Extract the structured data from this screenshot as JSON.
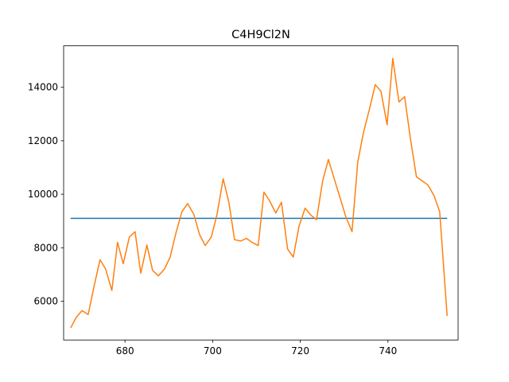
{
  "chart_data": {
    "type": "line",
    "title": "C4H9Cl2N",
    "xlabel": "",
    "ylabel": "",
    "xlim": [
      666.0,
      756.0
    ],
    "ylim": [
      4550,
      15550
    ],
    "xticks": [
      680,
      700,
      720,
      740
    ],
    "yticks": [
      6000,
      8000,
      10000,
      12000,
      14000
    ],
    "grid": false,
    "colors": {
      "series_0": "#1f77b4",
      "series_1": "#ff7f0e"
    },
    "series": [
      {
        "x": [
          667.6,
          753.5
        ],
        "y": [
          9100,
          9100
        ]
      },
      {
        "x": [
          667.6,
          668.9,
          670.2,
          671.6,
          673.0,
          674.3,
          675.6,
          677.0,
          678.3,
          679.6,
          681.0,
          682.3,
          683.6,
          685.0,
          686.3,
          687.6,
          689.0,
          690.3,
          691.7,
          693.0,
          694.3,
          695.7,
          697.0,
          698.3,
          699.7,
          701.0,
          702.4,
          703.7,
          705.0,
          706.4,
          707.7,
          709.0,
          710.4,
          711.7,
          713.0,
          714.4,
          715.7,
          717.1,
          718.4,
          719.7,
          721.1,
          722.4,
          723.7,
          725.1,
          726.4,
          727.7,
          729.1,
          730.4,
          731.8,
          733.1,
          734.4,
          735.8,
          737.1,
          738.4,
          739.8,
          741.1,
          742.5,
          743.8,
          745.1,
          746.5,
          747.8,
          749.1,
          750.5,
          751.8,
          753.5
        ],
        "y": [
          5000,
          5400,
          5650,
          5500,
          6600,
          7550,
          7200,
          6400,
          8200,
          7400,
          8400,
          8600,
          7050,
          8100,
          7150,
          6950,
          7200,
          7650,
          8600,
          9350,
          9650,
          9250,
          8500,
          8080,
          8400,
          9250,
          10580,
          9700,
          8300,
          8250,
          8350,
          8200,
          8080,
          10080,
          9750,
          9300,
          9700,
          7950,
          7650,
          8800,
          9480,
          9220,
          9050,
          10500,
          11300,
          10600,
          9850,
          9150,
          8600,
          11200,
          12300,
          13200,
          14100,
          13850,
          12600,
          15080,
          13450,
          13650,
          12100,
          10650,
          10500,
          10350,
          9950,
          9350,
          5450
        ]
      }
    ]
  }
}
